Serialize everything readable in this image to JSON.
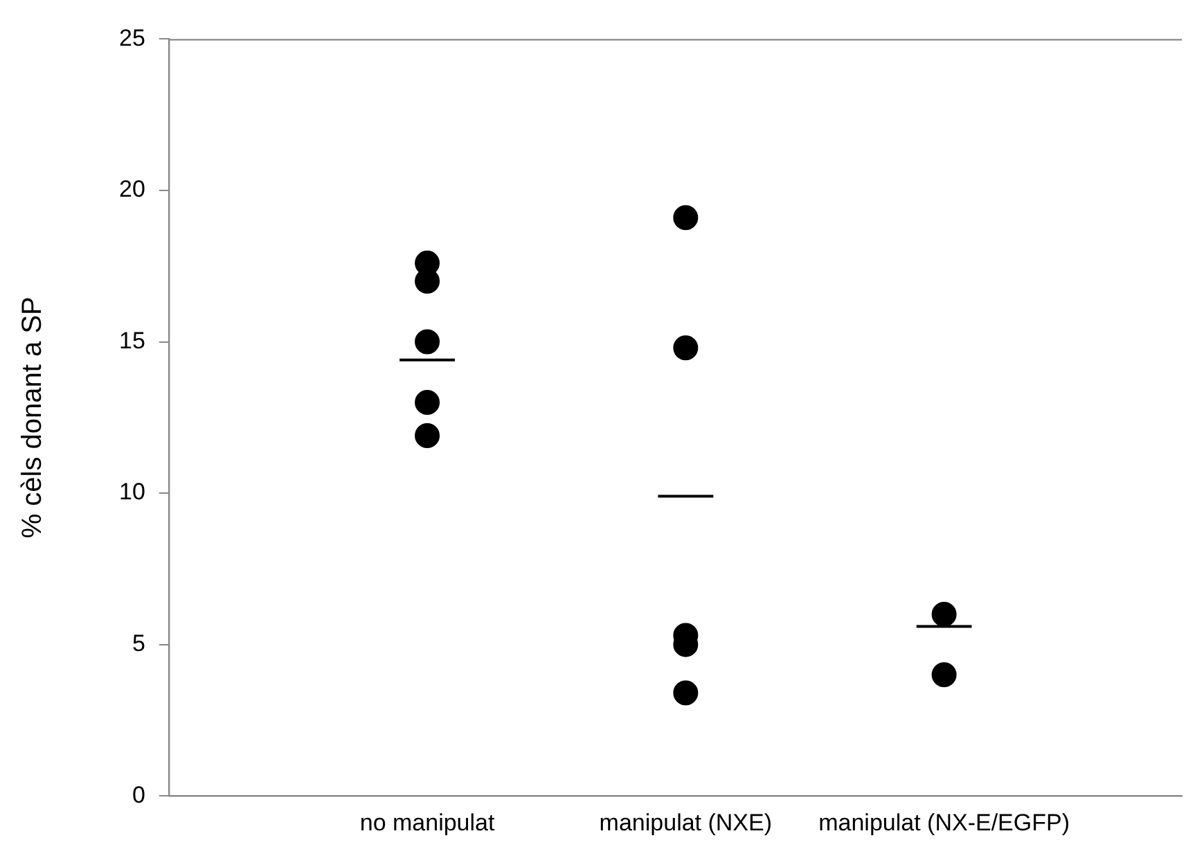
{
  "chart_data": {
    "type": "scatter",
    "ylabel": "% cèls donant a SP",
    "categories": [
      null,
      "no manipulat",
      "manipulat (NXE)",
      "manipulat (NX-E/EGFP)"
    ],
    "series": [
      {
        "type": "scatter",
        "color": "#000000",
        "marker": "circle",
        "x": [
          "no manipulat",
          "no manipulat",
          "no manipulat",
          "no manipulat",
          "no manipulat",
          "manipulat (NXE)",
          "manipulat (NXE)",
          "manipulat (NXE)",
          "manipulat (NXE)",
          "manipulat (NXE)",
          "manipulat (NX-E/EGFP)",
          "manipulat (NX-E/EGFP)"
        ],
        "values": [
          17.6,
          17.0,
          15.0,
          13.0,
          11.9,
          19.1,
          14.8,
          5.3,
          5.0,
          3.4,
          6.0,
          4.0
        ]
      },
      {
        "type": "box",
        "color": "#000000",
        "boxes": [
          null,
          {
            "low": 14.4,
            "q1": 14.4,
            "median": 14.4,
            "q3": 14.4,
            "high": 14.4
          },
          {
            "low": 9.9,
            "q1": 9.9,
            "median": 9.9,
            "q3": 9.9,
            "high": 9.9
          },
          {
            "low": 5.6,
            "q1": 5.6,
            "median": 5.6,
            "q3": 5.6,
            "high": 5.6
          }
        ]
      }
    ],
    "ylim": [
      0,
      25
    ],
    "yticks": [
      0,
      5,
      10,
      15,
      20,
      25
    ],
    "grid": false,
    "legend": false
  }
}
